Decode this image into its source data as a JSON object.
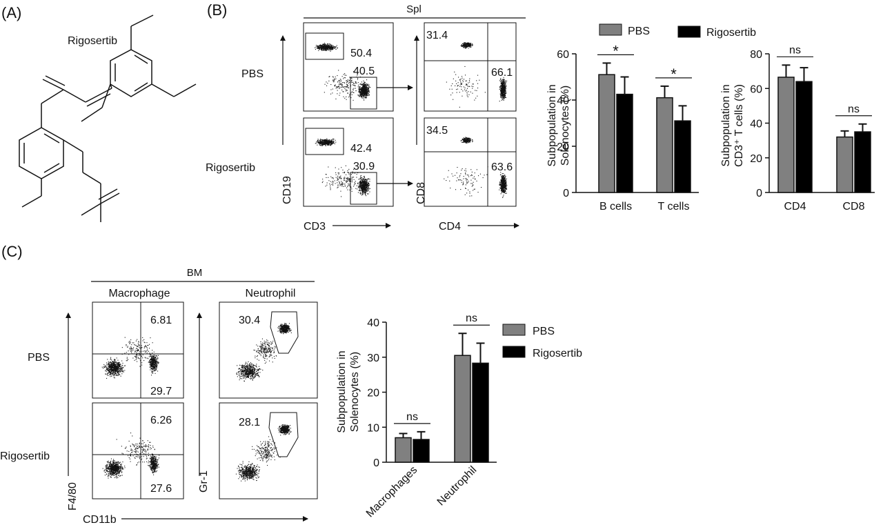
{
  "panel_a": {
    "label": "(A)",
    "compound": "Rigosertib"
  },
  "panel_b": {
    "label": "(B)",
    "tissue": "Spl",
    "row_labels": [
      "PBS",
      "Rigosertib"
    ],
    "axis_labels": {
      "cd19": "CD19",
      "cd3": "CD3",
      "cd8": "CD8",
      "cd4": "CD4"
    },
    "flow_values": {
      "pbs_cd19": "50.4",
      "pbs_cd3": "40.5",
      "pbs_cd8": "31.4",
      "pbs_cd4": "66.1",
      "rig_cd19": "42.4",
      "rig_cd3": "30.9",
      "rig_cd8": "34.5",
      "rig_cd4": "63.6"
    },
    "legend": [
      "PBS",
      "Rigosertib"
    ]
  },
  "panel_c": {
    "label": "(C)",
    "tissue": "BM",
    "col_labels": [
      "Macrophage",
      "Neutrophil"
    ],
    "row_labels": [
      "PBS",
      "Rigosertib"
    ],
    "axis_labels": {
      "f480": "F4/80",
      "cd11b": "CD11b",
      "gr1": "Gr-1"
    },
    "flow_values": {
      "pbs_mac_upper": "6.81",
      "pbs_mac_lower": "29.7",
      "pbs_neut": "30.4",
      "rig_mac_upper": "6.26",
      "rig_mac_lower": "27.6",
      "rig_neut": "28.1"
    },
    "legend": [
      "PBS",
      "Rigosertib"
    ]
  },
  "colors": {
    "pbs": "#808080",
    "rigosertib": "#000000"
  },
  "chart_data": [
    {
      "type": "bar",
      "ylabel": "Subpopulation in Solenocytes (%)",
      "ylabel_lines": [
        "Subpopulation in",
        "Solenocytes (%)"
      ],
      "categories": [
        "B cells",
        "T cells"
      ],
      "series": [
        {
          "name": "PBS",
          "values": [
            51,
            41
          ],
          "errors": [
            5,
            5
          ]
        },
        {
          "name": "Rigosertib",
          "values": [
            42.5,
            31
          ],
          "errors": [
            7.5,
            6.5
          ]
        }
      ],
      "yticks": [
        0,
        20,
        40,
        60
      ],
      "ylim": [
        0,
        60
      ],
      "significance": [
        "*",
        "*"
      ],
      "legend": "top"
    },
    {
      "type": "bar",
      "ylabel_lines": [
        "Subpopulation in",
        "CD3⁺ T cells (%)"
      ],
      "categories": [
        "CD4",
        "CD8"
      ],
      "series": [
        {
          "name": "PBS",
          "values": [
            66.5,
            32
          ],
          "errors": [
            7,
            3.5
          ]
        },
        {
          "name": "Rigosertib",
          "values": [
            64,
            35
          ],
          "errors": [
            8,
            4.5
          ]
        }
      ],
      "yticks": [
        0,
        20,
        40,
        60,
        80
      ],
      "ylim": [
        0,
        80
      ],
      "significance": [
        "ns",
        "ns"
      ]
    },
    {
      "type": "bar",
      "ylabel_lines": [
        "Subpopulation in",
        "Solenocytes (%)"
      ],
      "categories": [
        "Macrophages",
        "Neutrophil"
      ],
      "series": [
        {
          "name": "PBS",
          "values": [
            7,
            30.5
          ],
          "errors": [
            1.2,
            6.3
          ]
        },
        {
          "name": "Rigosertib",
          "values": [
            6.5,
            28.3
          ],
          "errors": [
            2.2,
            5.7
          ]
        }
      ],
      "yticks": [
        0,
        10,
        20,
        30,
        40
      ],
      "ylim": [
        0,
        40
      ],
      "significance": [
        "ns",
        "ns"
      ],
      "legend": "right"
    }
  ]
}
